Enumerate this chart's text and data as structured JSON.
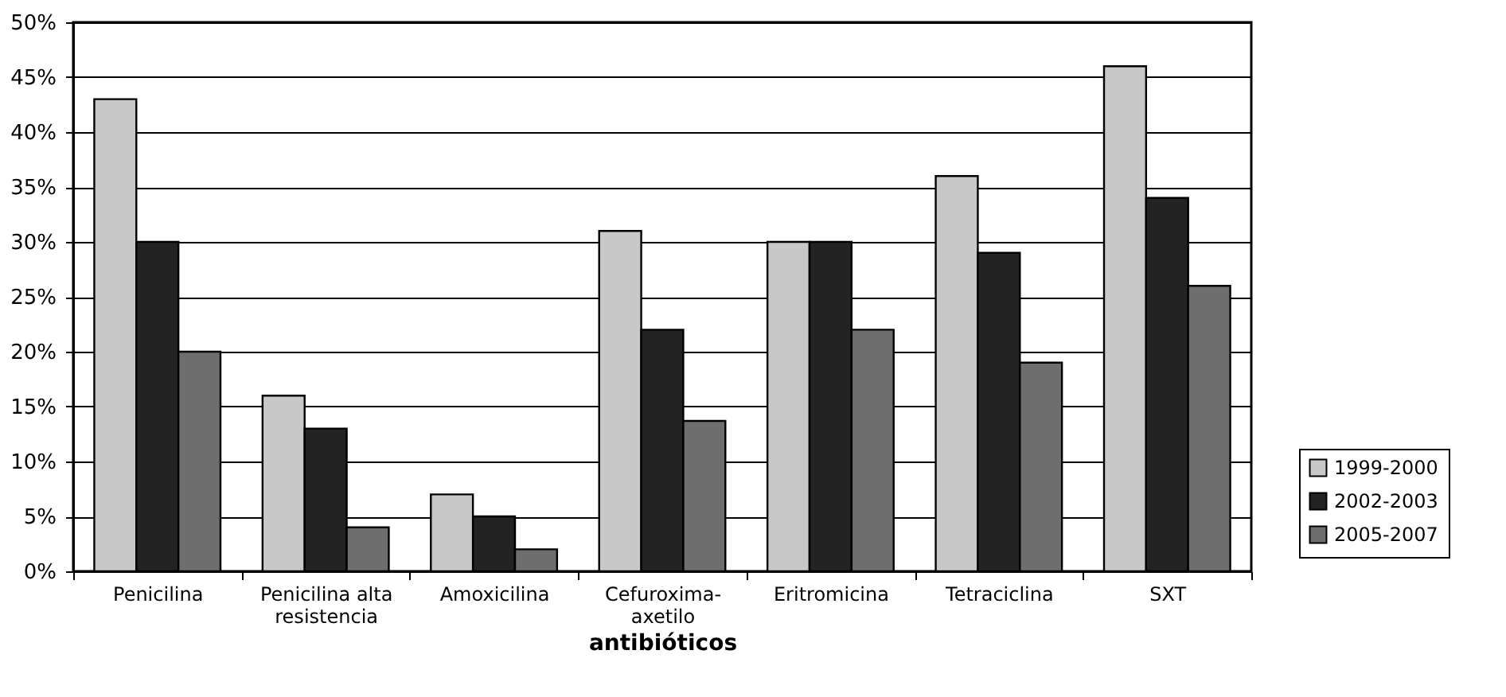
{
  "chart_data": {
    "type": "bar",
    "xlabel": "antibióticos",
    "categories": [
      "Penicilina",
      "Penicilina alta resistencia",
      "Amoxicilina",
      "Cefuroxima-axetilo",
      "Eritromicina",
      "Tetraciclina",
      "SXT"
    ],
    "series": [
      {
        "name": "1999-2000",
        "color": "#c8c8c8",
        "values": [
          43,
          16,
          7,
          31,
          30,
          36,
          46
        ]
      },
      {
        "name": "2002-2003",
        "color": "#232323",
        "values": [
          30,
          13,
          5,
          22,
          30,
          29,
          34
        ]
      },
      {
        "name": "2005-2007",
        "color": "#6e6e6e",
        "values": [
          20,
          4,
          2,
          13.7,
          22,
          19,
          26
        ]
      }
    ],
    "ylim": [
      0,
      50
    ],
    "yticks": [
      {
        "value": 0,
        "label": "0%"
      },
      {
        "value": 5,
        "label": "5%"
      },
      {
        "value": 10,
        "label": "10%"
      },
      {
        "value": 15,
        "label": "15%"
      },
      {
        "value": 20,
        "label": "20%"
      },
      {
        "value": 25,
        "label": "25%"
      },
      {
        "value": 30,
        "label": "30%"
      },
      {
        "value": 35,
        "label": "35%"
      },
      {
        "value": 40,
        "label": "40%"
      },
      {
        "value": 45,
        "label": "45%"
      },
      {
        "value": 50,
        "label": "50%"
      }
    ],
    "grid": "y",
    "legend": "right"
  }
}
